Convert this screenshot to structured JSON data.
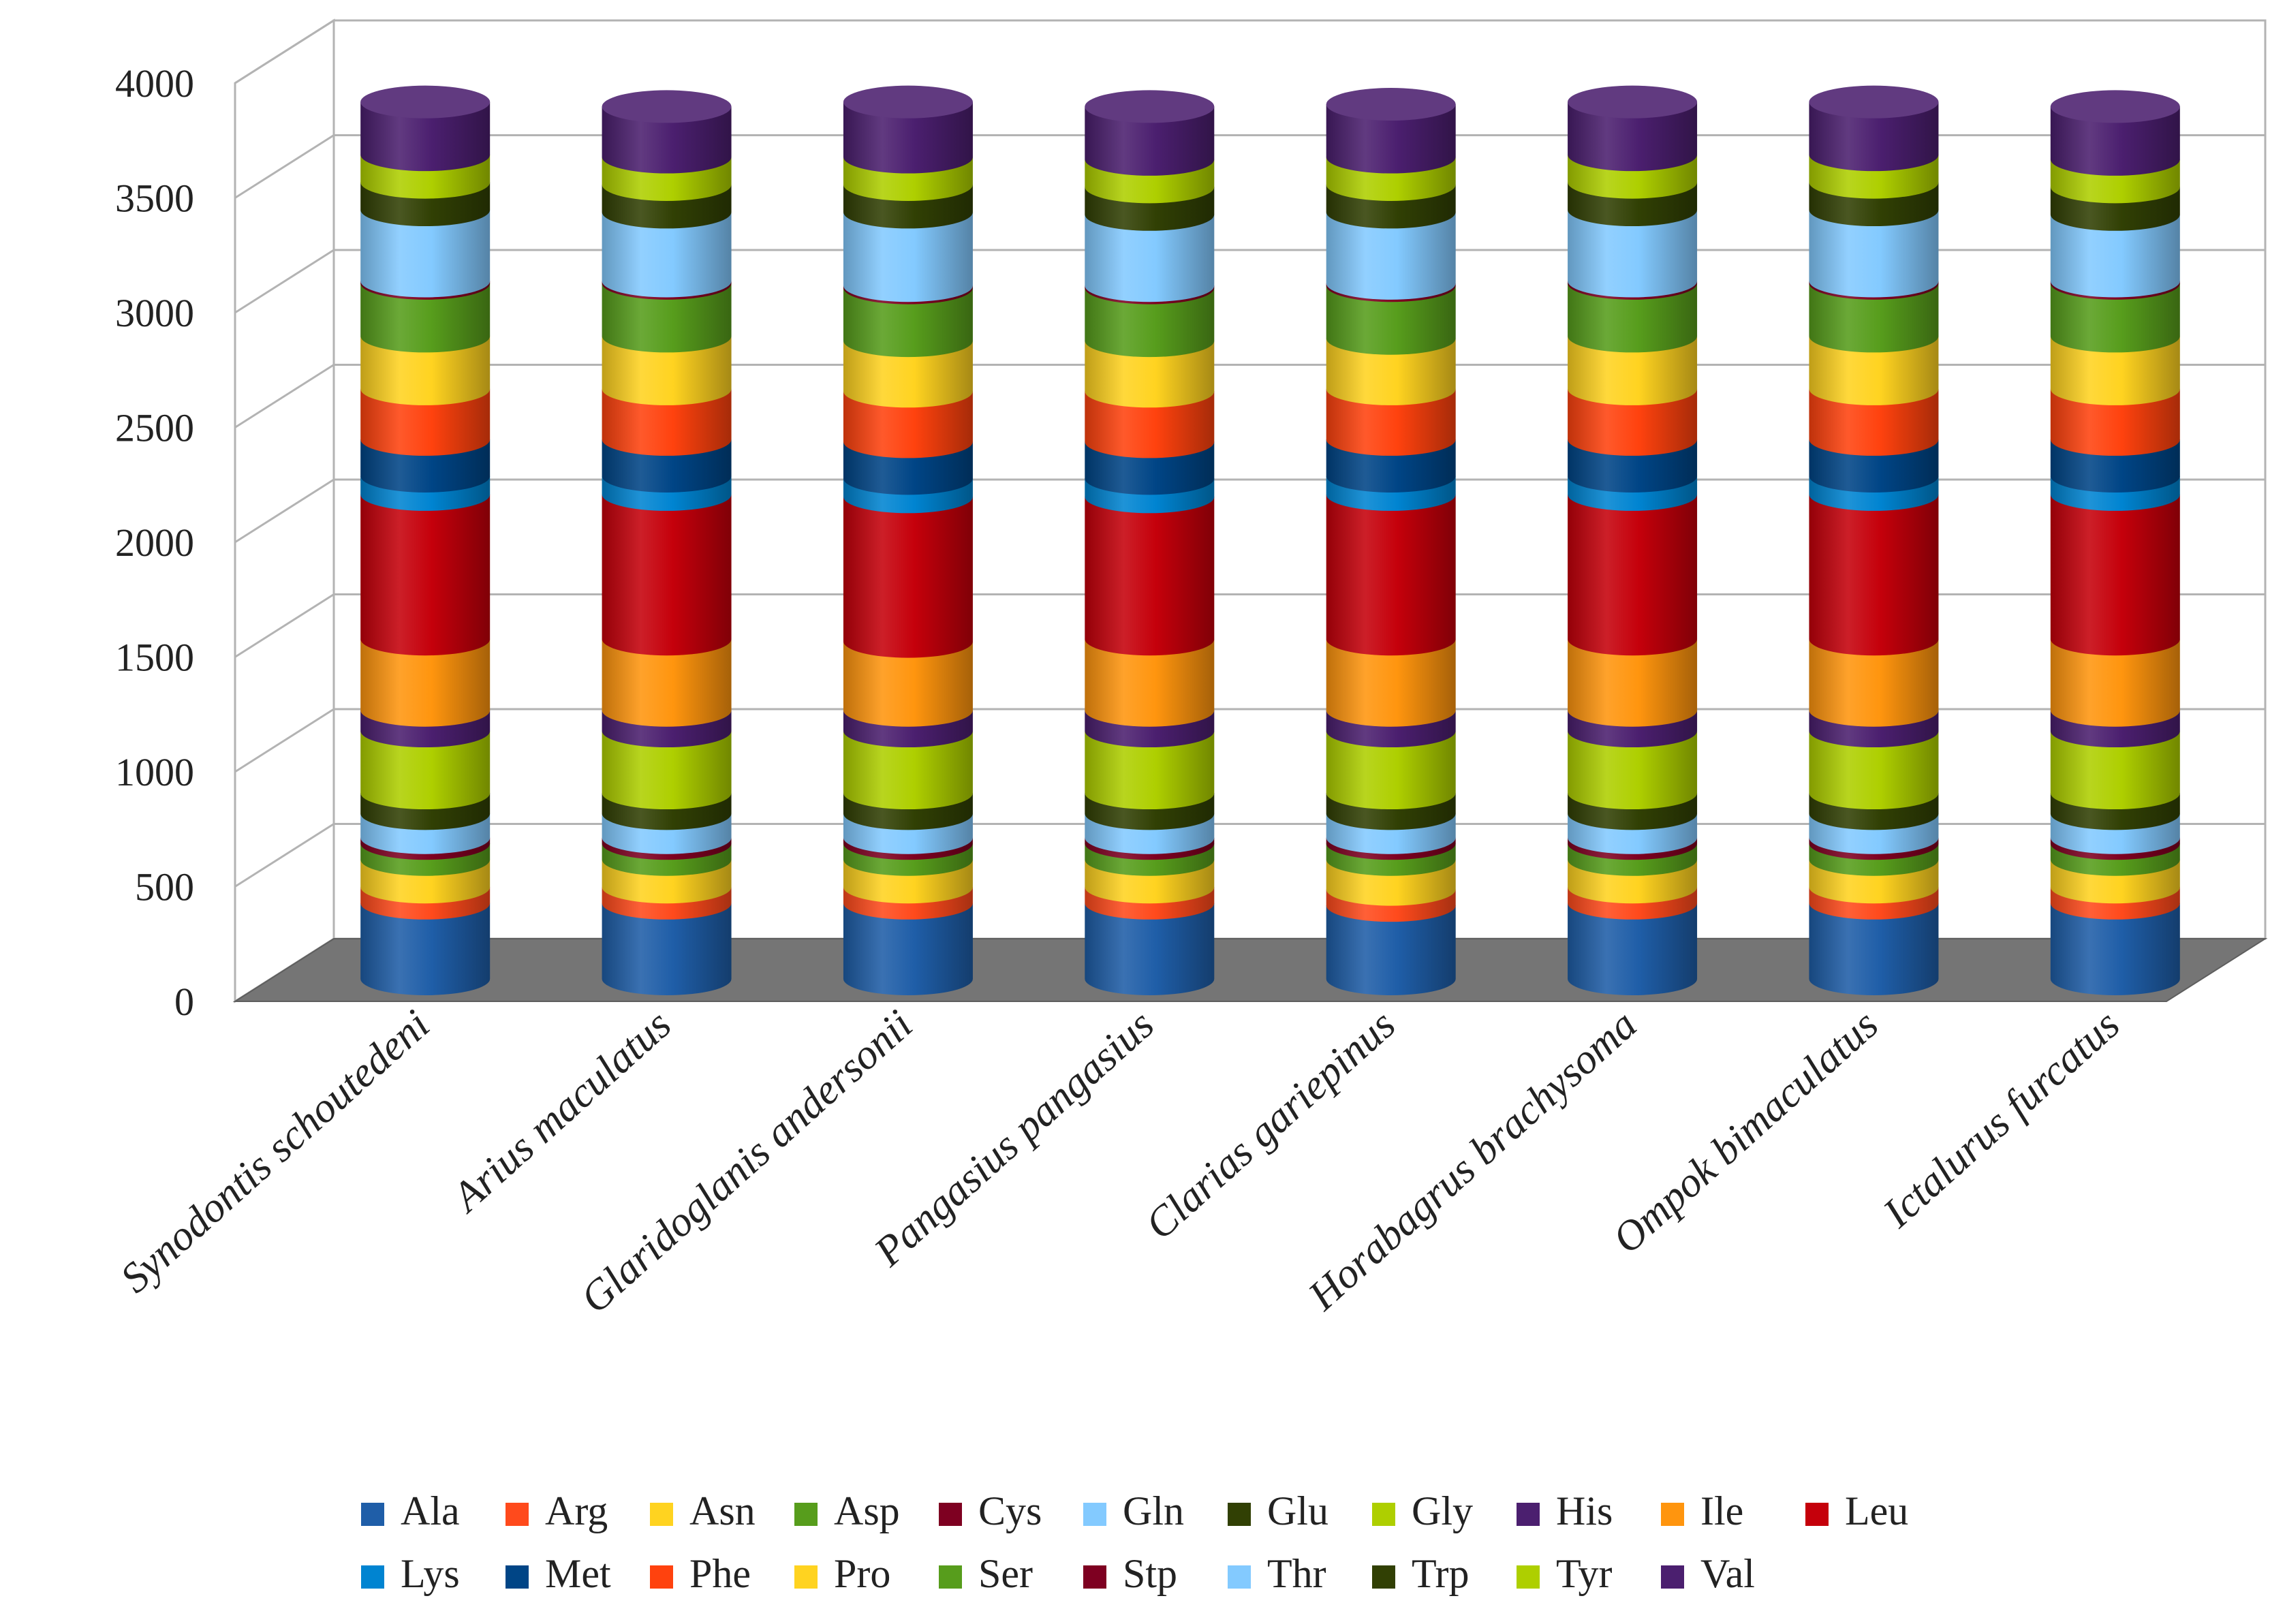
{
  "chart_data": {
    "type": "bar",
    "style": "stacked-3d-cylinder",
    "title": "",
    "xlabel": "",
    "ylabel": "",
    "ylim": [
      0,
      4000
    ],
    "yticks": [
      0,
      500,
      1000,
      1500,
      2000,
      2500,
      3000,
      3500,
      4000
    ],
    "ytick_labels": [
      "0",
      "500",
      "1000",
      "1500",
      "2000",
      "2500",
      "3000",
      "3500",
      "4000"
    ],
    "grid": true,
    "legend_position": "bottom",
    "categories": [
      "Synodontis schoutedeni",
      "Arius maculatus",
      "Glaridoglanis andersonii",
      "Pangasius pangasius",
      "Clarias gariepinus",
      "Horabagrus brachysoma",
      "Ompok bimaculatus",
      "Ictalurus furcatus"
    ],
    "series": [
      {
        "name": "Ala",
        "color": "#1f5ea8",
        "values": [
          330,
          330,
          330,
          330,
          320,
          330,
          330,
          330
        ]
      },
      {
        "name": "Arg",
        "color": "#ff4a1c",
        "values": [
          70,
          70,
          70,
          70,
          70,
          70,
          70,
          70
        ]
      },
      {
        "name": "Asn",
        "color": "#ffd320",
        "values": [
          120,
          120,
          120,
          120,
          130,
          120,
          120,
          120
        ]
      },
      {
        "name": "Asp",
        "color": "#579d1c",
        "values": [
          70,
          70,
          70,
          70,
          70,
          70,
          70,
          70
        ]
      },
      {
        "name": "Cys",
        "color": "#7e0021",
        "values": [
          25,
          25,
          25,
          25,
          25,
          25,
          25,
          25
        ]
      },
      {
        "name": "Gln",
        "color": "#83caff",
        "values": [
          105,
          105,
          105,
          105,
          105,
          105,
          105,
          105
        ]
      },
      {
        "name": "Glu",
        "color": "#314004",
        "values": [
          90,
          90,
          90,
          90,
          90,
          90,
          90,
          90
        ]
      },
      {
        "name": "Gly",
        "color": "#aecf00",
        "values": [
          270,
          270,
          270,
          270,
          270,
          270,
          270,
          270
        ]
      },
      {
        "name": "His",
        "color": "#4b1f6f",
        "values": [
          90,
          90,
          90,
          90,
          90,
          90,
          90,
          90
        ]
      },
      {
        "name": "Ile",
        "color": "#ff950e",
        "values": [
          310,
          310,
          300,
          310,
          310,
          310,
          310,
          310
        ]
      },
      {
        "name": "Leu",
        "color": "#c5000b",
        "values": [
          630,
          630,
          630,
          620,
          630,
          630,
          630,
          630
        ]
      },
      {
        "name": "Lys",
        "color": "#0084d1",
        "values": [
          80,
          80,
          80,
          80,
          80,
          80,
          80,
          80
        ]
      },
      {
        "name": "Met",
        "color": "#004586",
        "values": [
          160,
          160,
          160,
          160,
          160,
          160,
          160,
          160
        ]
      },
      {
        "name": "Phe",
        "color": "#ff420e",
        "values": [
          220,
          220,
          220,
          220,
          220,
          220,
          220,
          220
        ]
      },
      {
        "name": "Pro",
        "color": "#ffd320",
        "values": [
          230,
          230,
          220,
          220,
          220,
          230,
          230,
          230
        ]
      },
      {
        "name": "Ser",
        "color": "#579d1c",
        "values": [
          230,
          230,
          230,
          230,
          230,
          230,
          230,
          230
        ]
      },
      {
        "name": "Stp",
        "color": "#7e0021",
        "values": [
          10,
          10,
          10,
          10,
          10,
          10,
          10,
          10
        ]
      },
      {
        "name": "Thr",
        "color": "#83caff",
        "values": [
          310,
          300,
          320,
          310,
          310,
          310,
          310,
          290
        ]
      },
      {
        "name": "Trp",
        "color": "#314004",
        "values": [
          120,
          120,
          120,
          120,
          120,
          120,
          120,
          120
        ]
      },
      {
        "name": "Tyr",
        "color": "#aecf00",
        "values": [
          120,
          120,
          120,
          120,
          120,
          120,
          120,
          120
        ]
      },
      {
        "name": "Val",
        "color": "#4b1f6f",
        "values": [
          230,
          220,
          240,
          230,
          230,
          230,
          230,
          230
        ]
      }
    ]
  }
}
